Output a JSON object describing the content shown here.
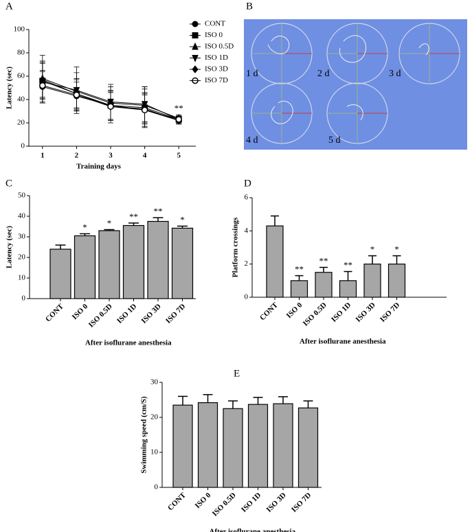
{
  "chart_data": [
    {
      "type": "line",
      "panel_label": "A",
      "xlabel": "Training days",
      "ylabel": "Latency (sec)",
      "x": [
        1,
        2,
        3,
        4,
        5
      ],
      "xlim": [
        0.6,
        5.5
      ],
      "xticks": [
        1,
        2,
        3,
        4,
        5
      ],
      "ylim": [
        0,
        100
      ],
      "yticks": [
        0,
        20,
        40,
        60,
        80,
        100
      ],
      "annotation": "**",
      "series": [
        {
          "name": "CONT",
          "marker": "circle",
          "color": "#000000",
          "values": [
            51,
            43,
            35,
            31,
            22
          ],
          "errors": [
            14,
            12,
            12,
            15,
            3
          ]
        },
        {
          "name": "ISO 0",
          "marker": "square",
          "color": "#000000",
          "values": [
            56,
            45,
            35,
            33,
            23
          ],
          "errors": [
            15,
            13,
            13,
            16,
            3
          ]
        },
        {
          "name": "ISO 0.5D",
          "marker": "triangle-up",
          "color": "#000000",
          "values": [
            58,
            47,
            37,
            35,
            24
          ],
          "errors": [
            20,
            16,
            14,
            16,
            3
          ]
        },
        {
          "name": "ISO 1D",
          "marker": "triangle-down",
          "color": "#000000",
          "values": [
            55,
            48,
            38,
            36,
            23
          ],
          "errors": [
            18,
            20,
            15,
            15,
            2
          ]
        },
        {
          "name": "ISO 3D",
          "marker": "diamond",
          "color": "#000000",
          "values": [
            57,
            45,
            34,
            32,
            22
          ],
          "errors": [
            15,
            12,
            14,
            12,
            3
          ]
        },
        {
          "name": "ISO 7D",
          "marker": "open-circle",
          "color": "#000000",
          "values": [
            52,
            44,
            34,
            31,
            23
          ],
          "errors": [
            12,
            14,
            12,
            14,
            3
          ]
        }
      ]
    },
    {
      "type": "image",
      "panel_label": "B",
      "labels": [
        "1 d",
        "2 d",
        "3 d",
        "4 d",
        "5 d"
      ]
    },
    {
      "type": "bar",
      "panel_label": "C",
      "xlabel": "After isoflurane anesthesia",
      "ylabel": "Latency (sec)",
      "categories": [
        "CONT",
        "ISO 0",
        "ISO 0.5D",
        "ISO 1D",
        "ISO 3D",
        "ISO 7D"
      ],
      "values": [
        24,
        30.5,
        33,
        35.5,
        37.5,
        34.2
      ],
      "errors": [
        2,
        1,
        0.5,
        1.2,
        1.8,
        1
      ],
      "annotations": [
        null,
        "*",
        "*",
        "**",
        "**",
        "*"
      ],
      "color": "#a6a6a6",
      "ylim": [
        0,
        50
      ],
      "yticks": [
        0,
        10,
        20,
        30,
        40,
        50
      ]
    },
    {
      "type": "bar",
      "panel_label": "D",
      "xlabel": "After isoflurane anesthesia",
      "ylabel": "Platform crossings",
      "categories": [
        "CONT",
        "ISO 0",
        "ISO 0.5D",
        "ISO 1D",
        "ISO 3D",
        "ISO 7D"
      ],
      "values": [
        4.3,
        1,
        1.5,
        1,
        2,
        2
      ],
      "errors": [
        0.6,
        0.3,
        0.3,
        0.55,
        0.5,
        0.5
      ],
      "annotations": [
        null,
        "**",
        "**",
        "**",
        "*",
        "*"
      ],
      "color": "#a6a6a6",
      "ylim": [
        0,
        6
      ],
      "yticks": [
        0,
        2,
        4,
        6
      ]
    },
    {
      "type": "bar",
      "panel_label": "E",
      "xlabel": "After isoflurane anesthesia",
      "ylabel": "Swimming speed (cm/S)",
      "categories": [
        "CONT",
        "ISO 0",
        "ISO 0.5D",
        "ISO 1D",
        "ISO 3D",
        "ISO 7D"
      ],
      "values": [
        23.5,
        24.2,
        22.5,
        23.7,
        23.9,
        22.7
      ],
      "errors": [
        2.5,
        2.3,
        2.2,
        2,
        2,
        2
      ],
      "color": "#a6a6a6",
      "ylim": [
        0,
        30
      ],
      "yticks": [
        0,
        10,
        20,
        30
      ]
    }
  ]
}
